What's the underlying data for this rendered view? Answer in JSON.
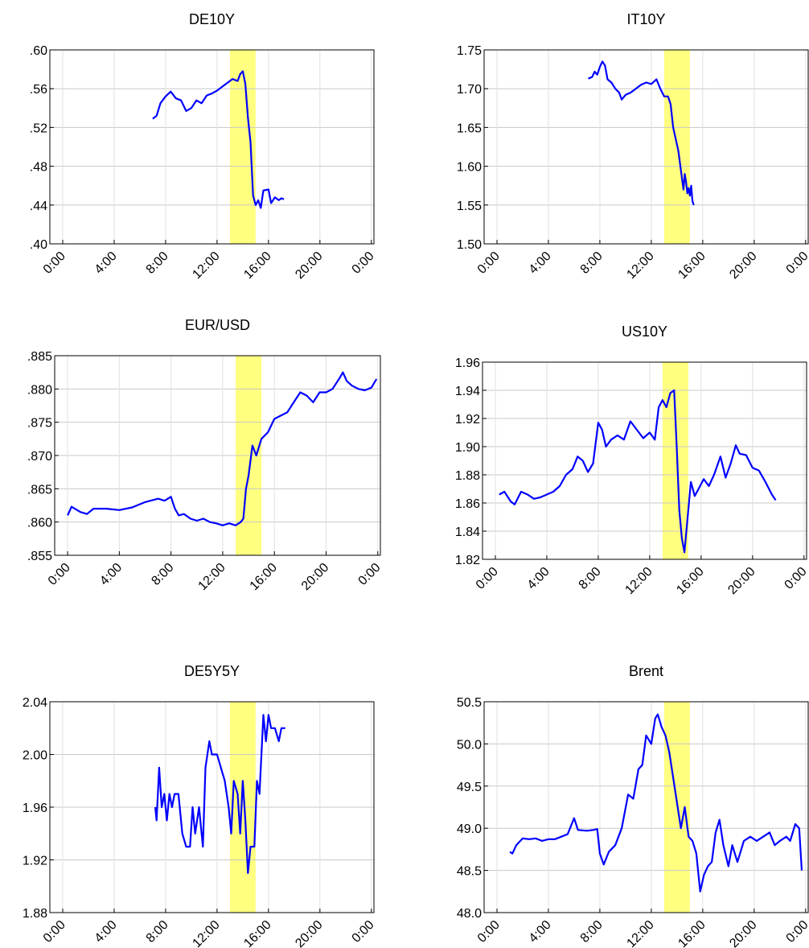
{
  "chart_data": [
    {
      "type": "line",
      "title": "DE10Y",
      "color": "#0000ff",
      "grid": true,
      "highlight": [
        13,
        15
      ],
      "highlight_color": "#ffff80",
      "xlim": [
        -1,
        24.2
      ],
      "xticks": [
        {
          "value": 0,
          "label": "0:00"
        },
        {
          "value": 4,
          "label": "4:00"
        },
        {
          "value": 8,
          "label": "8:00"
        },
        {
          "value": 12,
          "label": "12:00"
        },
        {
          "value": 16,
          "label": "16:00"
        },
        {
          "value": 20,
          "label": "20:00"
        },
        {
          "value": 24,
          "label": "0:00"
        }
      ],
      "ylim": [
        0.4,
        0.6
      ],
      "yticks": [
        {
          "value": 0.4,
          "label": ".40"
        },
        {
          "value": 0.44,
          "label": ".44"
        },
        {
          "value": 0.48,
          "label": ".48"
        },
        {
          "value": 0.52,
          "label": ".52"
        },
        {
          "value": 0.56,
          "label": ".56"
        },
        {
          "value": 0.6,
          "label": ".60"
        }
      ],
      "x": [
        7.0,
        7.3,
        7.6,
        8.0,
        8.4,
        8.8,
        9.2,
        9.6,
        10.0,
        10.4,
        10.8,
        11.2,
        11.6,
        12.0,
        12.4,
        12.8,
        13.2,
        13.6,
        13.8,
        14.0,
        14.2,
        14.4,
        14.6,
        14.8,
        15.0,
        15.2,
        15.4,
        15.6,
        16.0,
        16.2,
        16.5,
        16.8,
        17.0,
        17.2
      ],
      "values": [
        0.529,
        0.532,
        0.545,
        0.552,
        0.557,
        0.55,
        0.548,
        0.537,
        0.54,
        0.548,
        0.545,
        0.553,
        0.555,
        0.558,
        0.562,
        0.566,
        0.57,
        0.568,
        0.575,
        0.578,
        0.565,
        0.53,
        0.505,
        0.45,
        0.44,
        0.445,
        0.437,
        0.455,
        0.456,
        0.442,
        0.448,
        0.445,
        0.447,
        0.446
      ]
    },
    {
      "type": "line",
      "title": "IT10Y",
      "color": "#0000ff",
      "grid": true,
      "highlight": [
        13,
        15
      ],
      "highlight_color": "#ffff80",
      "xlim": [
        -1,
        24.2
      ],
      "xticks": [
        {
          "value": 0,
          "label": "0:00"
        },
        {
          "value": 4,
          "label": "4:00"
        },
        {
          "value": 8,
          "label": "8:00"
        },
        {
          "value": 12,
          "label": "12:00"
        },
        {
          "value": 16,
          "label": "16:00"
        },
        {
          "value": 20,
          "label": "20:00"
        },
        {
          "value": 24,
          "label": "0:00"
        }
      ],
      "ylim": [
        1.5,
        1.75
      ],
      "yticks": [
        {
          "value": 1.5,
          "label": "1.50"
        },
        1.55,
        {
          "value": 1.6,
          "label": "1.60"
        },
        1.65,
        {
          "value": 1.7,
          "label": "1.70"
        },
        1.75
      ],
      "x": [
        7.1,
        7.4,
        7.6,
        7.8,
        8.0,
        8.2,
        8.4,
        8.6,
        8.9,
        9.2,
        9.5,
        9.7,
        10.0,
        10.4,
        10.8,
        11.2,
        11.6,
        12.0,
        12.4,
        12.7,
        13.0,
        13.3,
        13.5,
        13.7,
        13.9,
        14.1,
        14.3,
        14.5,
        14.6,
        14.7,
        14.8,
        14.9,
        15.0,
        15.1,
        15.2,
        15.3
      ],
      "values": [
        1.713,
        1.715,
        1.722,
        1.718,
        1.728,
        1.735,
        1.73,
        1.712,
        1.708,
        1.7,
        1.695,
        1.686,
        1.692,
        1.695,
        1.7,
        1.705,
        1.708,
        1.706,
        1.712,
        1.7,
        1.69,
        1.69,
        1.68,
        1.65,
        1.635,
        1.62,
        1.595,
        1.57,
        1.59,
        1.58,
        1.565,
        1.572,
        1.562,
        1.575,
        1.555,
        1.55
      ]
    },
    {
      "type": "line",
      "title": "EUR/USD",
      "color": "#0000ff",
      "grid": true,
      "highlight": [
        13,
        15
      ],
      "highlight_color": "#ffff80",
      "xlim": [
        -1,
        24.2
      ],
      "xticks": [
        {
          "value": 0,
          "label": "0:00"
        },
        {
          "value": 4,
          "label": "4:00"
        },
        {
          "value": 8,
          "label": "8:00"
        },
        {
          "value": 12,
          "label": "12:00"
        },
        {
          "value": 16,
          "label": "16:00"
        },
        {
          "value": 20,
          "label": "20:00"
        },
        {
          "value": 24,
          "label": "0:00"
        }
      ],
      "ylim": [
        0.855,
        0.885
      ],
      "yticks": [
        {
          "value": 0.855,
          "label": ".855"
        },
        {
          "value": 0.86,
          "label": ".860"
        },
        {
          "value": 0.865,
          "label": ".865"
        },
        {
          "value": 0.87,
          "label": ".870"
        },
        {
          "value": 0.875,
          "label": ".875"
        },
        {
          "value": 0.88,
          "label": ".880"
        },
        {
          "value": 0.885,
          "label": ".885"
        }
      ],
      "x": [
        0,
        0.3,
        1,
        1.5,
        2,
        3,
        4,
        5,
        6,
        7,
        7.5,
        8,
        8.3,
        8.6,
        9,
        9.5,
        10,
        10.5,
        11,
        11.5,
        12,
        12.5,
        13,
        13.4,
        13.6,
        13.8,
        14.0,
        14.3,
        14.6,
        15.0,
        15.5,
        16,
        16.5,
        17,
        17.5,
        18,
        18.5,
        19,
        19.5,
        20,
        20.5,
        21,
        21.3,
        21.6,
        22,
        22.5,
        23,
        23.5,
        23.9
      ],
      "values": [
        0.861,
        0.8623,
        0.8615,
        0.8612,
        0.862,
        0.862,
        0.8618,
        0.8622,
        0.863,
        0.8635,
        0.8632,
        0.8638,
        0.862,
        0.861,
        0.8612,
        0.8605,
        0.8602,
        0.8605,
        0.86,
        0.8598,
        0.8595,
        0.8598,
        0.8595,
        0.86,
        0.8605,
        0.865,
        0.867,
        0.8715,
        0.87,
        0.8725,
        0.8735,
        0.8755,
        0.876,
        0.8765,
        0.878,
        0.8795,
        0.879,
        0.878,
        0.8795,
        0.8795,
        0.88,
        0.8815,
        0.8825,
        0.8812,
        0.8805,
        0.88,
        0.8798,
        0.8802,
        0.8815
      ]
    },
    {
      "type": "line",
      "title": "US10Y",
      "color": "#0000ff",
      "grid": true,
      "highlight": [
        13,
        15
      ],
      "highlight_color": "#ffff80",
      "xlim": [
        -1,
        24.2
      ],
      "xticks": [
        {
          "value": 0,
          "label": "0:00"
        },
        {
          "value": 4,
          "label": "4:00"
        },
        {
          "value": 8,
          "label": "8:00"
        },
        {
          "value": 12,
          "label": "12:00"
        },
        {
          "value": 16,
          "label": "16:00"
        },
        {
          "value": 20,
          "label": "20:00"
        },
        {
          "value": 24,
          "label": "0:00"
        }
      ],
      "ylim": [
        1.82,
        1.96
      ],
      "yticks": [
        1.82,
        1.84,
        1.86,
        1.88,
        {
          "value": 1.9,
          "label": "1.90"
        },
        1.92,
        1.94,
        1.96
      ],
      "x": [
        0.3,
        0.7,
        1.2,
        1.5,
        2,
        2.5,
        3,
        3.5,
        4,
        4.5,
        5,
        5.5,
        6,
        6.4,
        6.8,
        7.2,
        7.6,
        8,
        8.3,
        8.6,
        9,
        9.5,
        10,
        10.5,
        11,
        11.5,
        12,
        12.4,
        12.7,
        13,
        13.3,
        13.6,
        13.9,
        14.1,
        14.3,
        14.5,
        14.7,
        14.9,
        15.2,
        15.5,
        15.8,
        16.2,
        16.6,
        17,
        17.5,
        17.9,
        18.3,
        18.7,
        19,
        19.5,
        20,
        20.5,
        21,
        21.5,
        21.8
      ],
      "values": [
        1.866,
        1.868,
        1.861,
        1.859,
        1.868,
        1.866,
        1.863,
        1.864,
        1.866,
        1.868,
        1.872,
        1.88,
        1.884,
        1.893,
        1.89,
        1.882,
        1.888,
        1.917,
        1.912,
        1.9,
        1.905,
        1.908,
        1.905,
        1.918,
        1.912,
        1.906,
        1.91,
        1.905,
        1.928,
        1.933,
        1.928,
        1.938,
        1.94,
        1.9,
        1.855,
        1.835,
        1.825,
        1.845,
        1.875,
        1.865,
        1.87,
        1.877,
        1.872,
        1.88,
        1.893,
        1.878,
        1.888,
        1.901,
        1.895,
        1.894,
        1.885,
        1.883,
        1.875,
        1.866,
        1.862
      ]
    },
    {
      "type": "line",
      "title": "DE5Y5Y",
      "color": "#0000ff",
      "grid": true,
      "highlight": [
        13,
        15
      ],
      "highlight_color": "#ffff80",
      "xlim": [
        -1,
        24.2
      ],
      "xticks": [
        {
          "value": 0,
          "label": "0:00"
        },
        {
          "value": 4,
          "label": "4:00"
        },
        {
          "value": 8,
          "label": "8:00"
        },
        {
          "value": 12,
          "label": "12:00"
        },
        {
          "value": 16,
          "label": "16:00"
        },
        {
          "value": 20,
          "label": "20:00"
        },
        {
          "value": 24,
          "label": "0:00"
        }
      ],
      "ylim": [
        1.88,
        2.04
      ],
      "yticks": [
        1.88,
        1.92,
        1.96,
        {
          "value": 2.0,
          "label": "2.00"
        },
        2.04
      ],
      "x": [
        7.2,
        7.3,
        7.5,
        7.7,
        7.9,
        8.1,
        8.3,
        8.5,
        8.7,
        9.0,
        9.3,
        9.6,
        9.9,
        10.1,
        10.3,
        10.6,
        10.9,
        11.1,
        11.4,
        11.6,
        12.0,
        12.3,
        12.6,
        12.9,
        13.1,
        13.3,
        13.6,
        13.8,
        14.0,
        14.2,
        14.4,
        14.6,
        14.9,
        15.1,
        15.3,
        15.6,
        15.8,
        16.0,
        16.2,
        16.5,
        16.8,
        17.0,
        17.3
      ],
      "values": [
        1.96,
        1.95,
        1.99,
        1.96,
        1.97,
        1.95,
        1.97,
        1.96,
        1.97,
        1.97,
        1.94,
        1.93,
        1.93,
        1.96,
        1.94,
        1.96,
        1.93,
        1.99,
        2.01,
        2.0,
        2.0,
        1.99,
        1.98,
        1.96,
        1.94,
        1.98,
        1.97,
        1.94,
        1.98,
        1.95,
        1.91,
        1.93,
        1.93,
        1.98,
        1.97,
        2.03,
        2.01,
        2.03,
        2.02,
        2.02,
        2.01,
        2.02,
        2.02
      ]
    },
    {
      "type": "line",
      "title": "Brent",
      "color": "#0000ff",
      "grid": true,
      "highlight": [
        13,
        15
      ],
      "highlight_color": "#ffff80",
      "xlim": [
        -1,
        24.2
      ],
      "xticks": [
        {
          "value": 0,
          "label": "0:00"
        },
        {
          "value": 4,
          "label": "4:00"
        },
        {
          "value": 8,
          "label": "8:00"
        },
        {
          "value": 12,
          "label": "12:00"
        },
        {
          "value": 16,
          "label": "16:00"
        },
        {
          "value": 20,
          "label": "20:00"
        },
        {
          "value": 24,
          "label": "0:00"
        }
      ],
      "ylim": [
        48.0,
        50.5
      ],
      "yticks": [
        {
          "value": 48.0,
          "label": "48.0"
        },
        48.5,
        {
          "value": 49.0,
          "label": "49.0"
        },
        49.5,
        {
          "value": 50.0,
          "label": "50.0"
        },
        50.5
      ],
      "x": [
        1.0,
        1.2,
        1.5,
        2,
        2.5,
        3,
        3.5,
        4,
        4.5,
        5,
        5.5,
        6.0,
        6.3,
        7,
        7.5,
        7.8,
        8.0,
        8.3,
        8.7,
        9.2,
        9.7,
        10.2,
        10.6,
        11.0,
        11.3,
        11.6,
        12.0,
        12.3,
        12.5,
        12.8,
        13.1,
        13.4,
        13.7,
        14.0,
        14.3,
        14.6,
        14.9,
        15.2,
        15.5,
        15.8,
        16.1,
        16.4,
        16.7,
        17.0,
        17.3,
        17.6,
        18.0,
        18.3,
        18.7,
        19.2,
        19.7,
        20.2,
        20.7,
        21.2,
        21.6,
        22.0,
        22.5,
        22.8,
        23.2,
        23.5,
        23.7
      ],
      "values": [
        48.72,
        48.7,
        48.8,
        48.88,
        48.87,
        48.88,
        48.85,
        48.87,
        48.87,
        48.9,
        48.93,
        49.12,
        48.98,
        48.97,
        48.98,
        48.99,
        48.7,
        48.57,
        48.72,
        48.8,
        49.0,
        49.4,
        49.35,
        49.7,
        49.75,
        50.1,
        50.0,
        50.3,
        50.35,
        50.2,
        50.1,
        49.9,
        49.6,
        49.3,
        49.0,
        49.25,
        48.9,
        48.85,
        48.7,
        48.25,
        48.45,
        48.55,
        48.6,
        48.95,
        49.1,
        48.8,
        48.55,
        48.8,
        48.6,
        48.85,
        48.9,
        48.85,
        48.9,
        48.95,
        48.8,
        48.85,
        48.9,
        48.85,
        49.05,
        49.0,
        48.5
      ]
    }
  ]
}
